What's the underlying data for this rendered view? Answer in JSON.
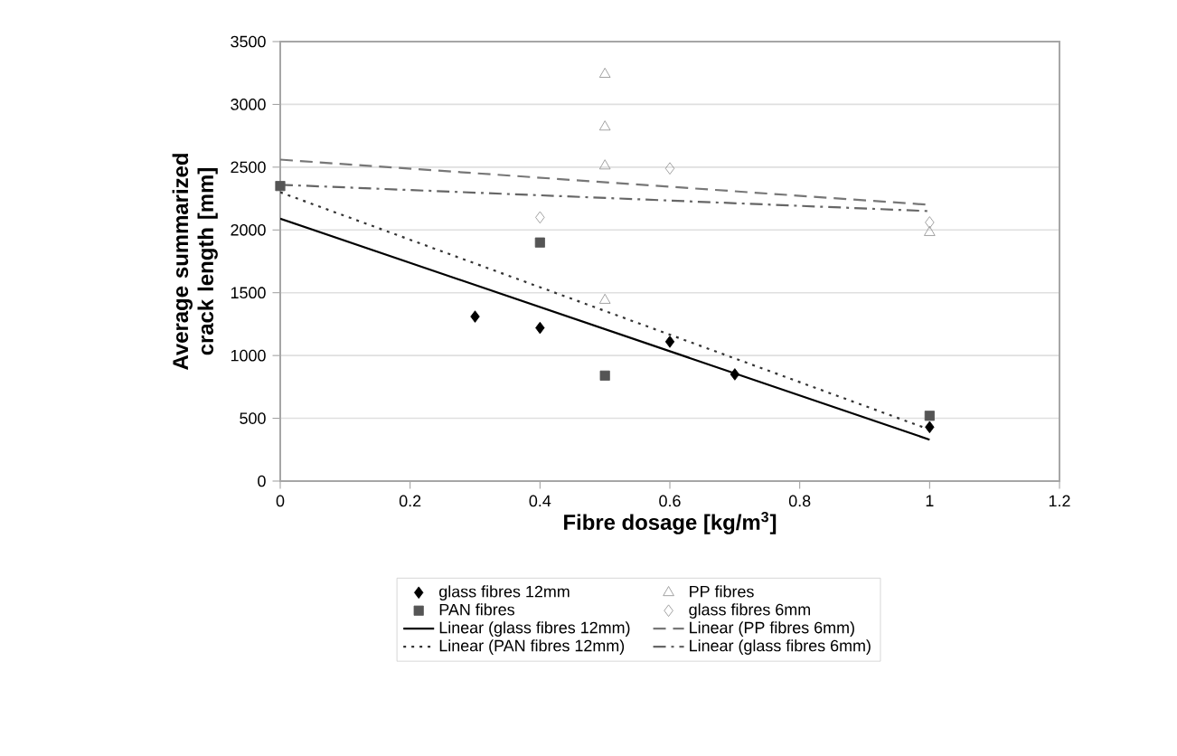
{
  "chart_data": {
    "type": "scatter",
    "xlabel": "Fibre dosage [kg/m$^{3}$]",
    "ylabel": "Average summarized crack length [mm]",
    "xlim": [
      0,
      1.2
    ],
    "xticks": [
      0,
      0.2,
      0.4,
      0.6,
      0.8,
      1,
      1.2
    ],
    "ylim": [
      0,
      3500
    ],
    "yticks": [
      0,
      500,
      1000,
      1500,
      2000,
      2500,
      3000,
      3500
    ],
    "grid": "y",
    "legend": "bottom",
    "series": [
      {
        "name": "glass fibres 12mm",
        "color": "#000000",
        "marker": "diamond",
        "x": [
          0.3,
          0.4,
          0.6,
          0.7,
          1
        ],
        "values": [
          1310,
          1220,
          1110,
          850,
          430
        ]
      },
      {
        "name": "PP fibres",
        "color": "#8c8c8c",
        "marker": "triangle",
        "x": [
          0.5,
          0.5,
          0.5,
          0.5,
          1
        ],
        "values": [
          3240,
          2820,
          2510,
          1440,
          1980
        ]
      },
      {
        "name": "PAN fibres",
        "color": "#555555",
        "marker": "square",
        "x": [
          0,
          0.4,
          0.5,
          1
        ],
        "values": [
          2350,
          1900,
          840,
          520
        ]
      },
      {
        "name": "glass fibres 6mm",
        "color": "#8c8c8c",
        "marker": "diamond_open",
        "x": [
          0.4,
          0.6,
          1
        ],
        "values": [
          2100,
          2490,
          2060
        ]
      },
      {
        "name": "Linear (glass fibres 12mm)",
        "type": "line",
        "color": "#000000",
        "line_style": "solid",
        "x": [
          0,
          1
        ],
        "values": [
          2090,
          330
        ]
      },
      {
        "name": "Linear (PP fibres 6mm)",
        "type": "line",
        "color": "#777777",
        "line_style": "dashed",
        "x": [
          0,
          1
        ],
        "values": [
          2560,
          2200
        ]
      },
      {
        "name": "Linear (PAN fibres 12mm)",
        "type": "line",
        "color": "#333333",
        "line_style": "dotted",
        "x": [
          0,
          1
        ],
        "values": [
          2300,
          410
        ]
      },
      {
        "name": "Linear (glass fibres 6mm)",
        "type": "line",
        "color": "#666666",
        "line_style": "dashdot",
        "x": [
          0,
          1
        ],
        "values": [
          2360,
          2150
        ]
      }
    ]
  }
}
